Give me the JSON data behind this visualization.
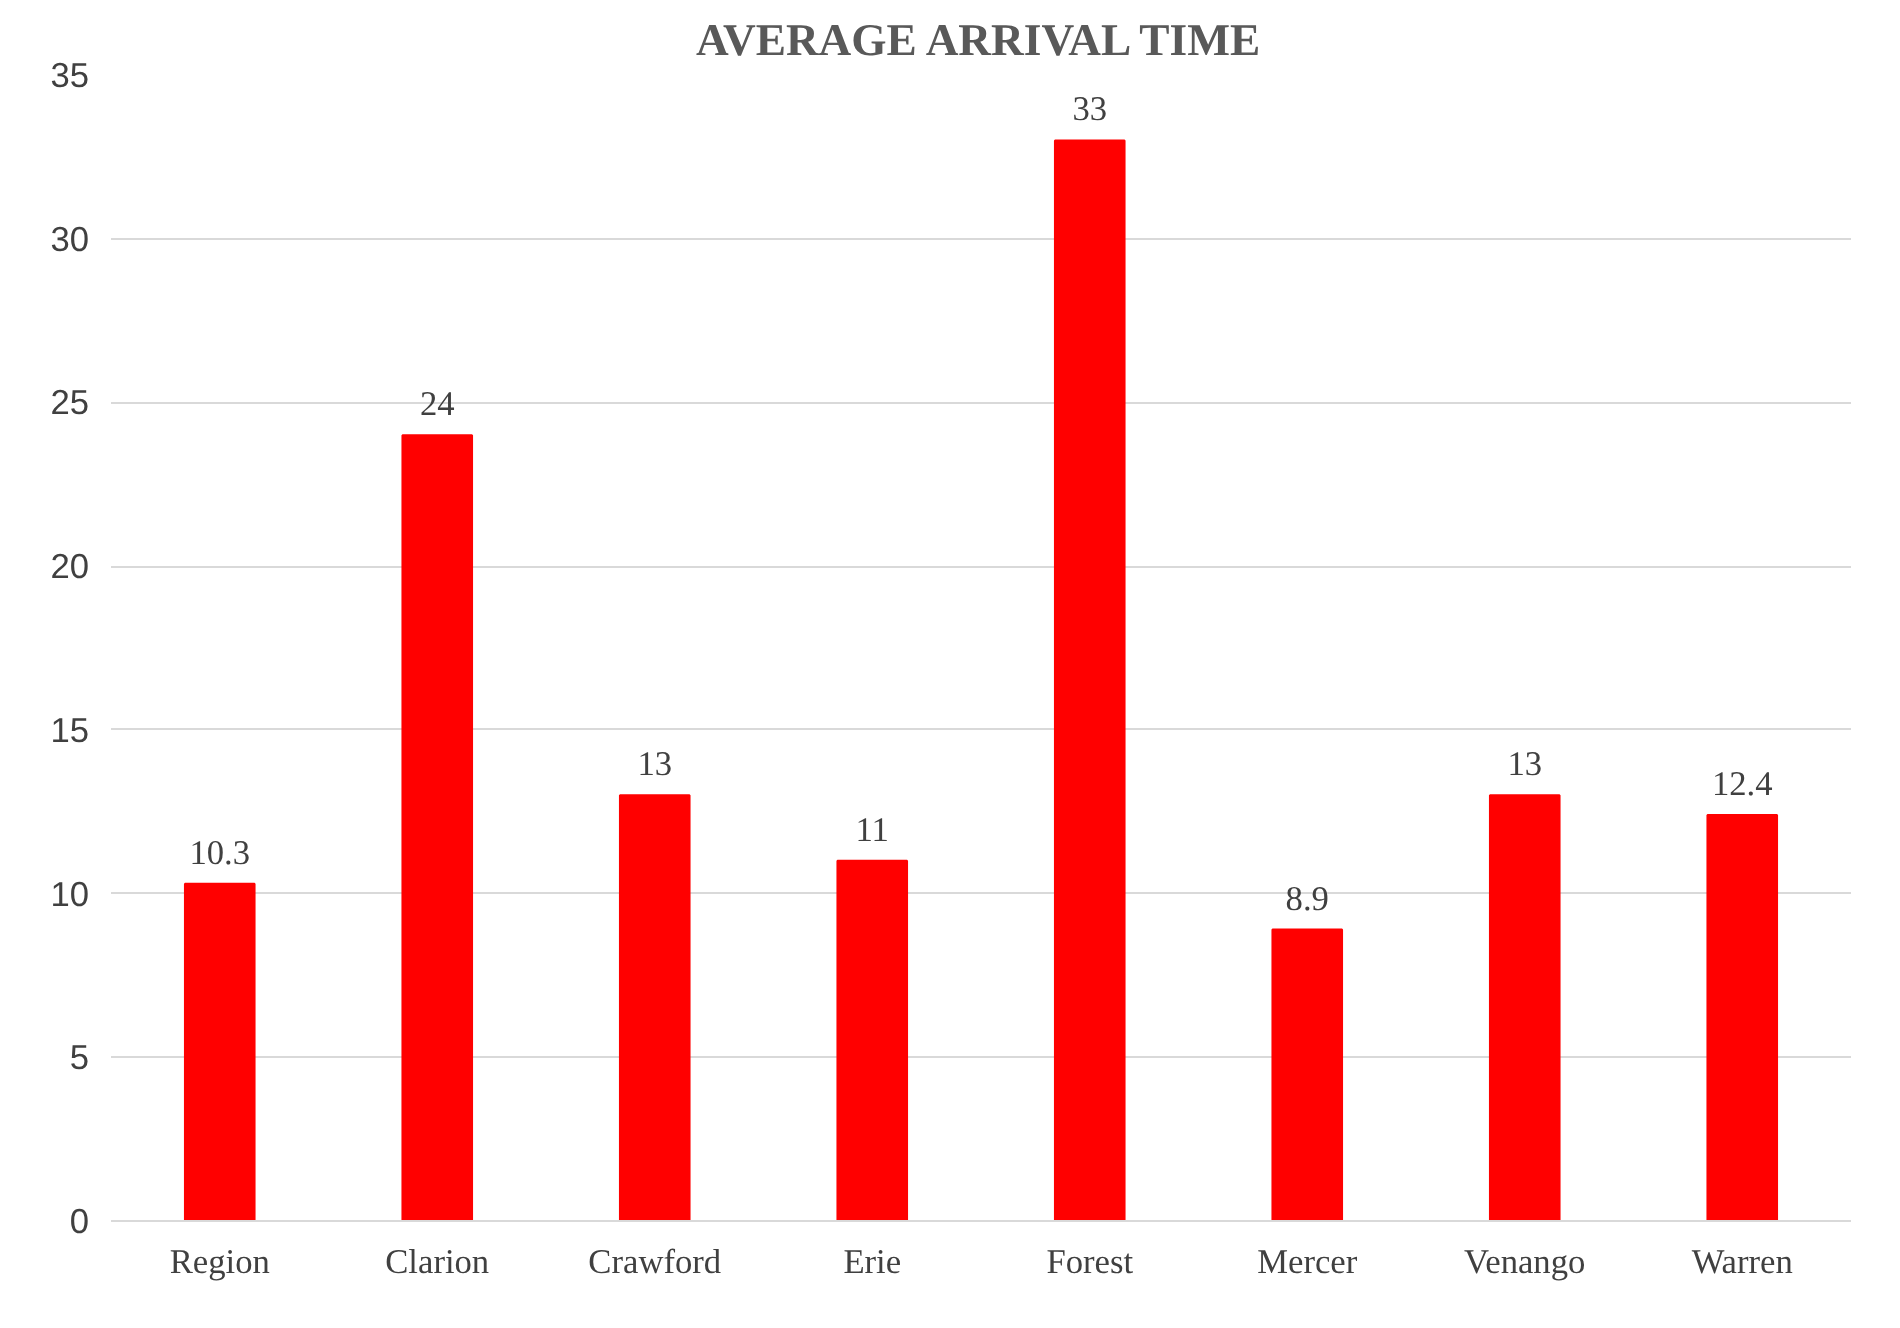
{
  "chart_data": {
    "type": "bar",
    "title": "AVERAGE ARRIVAL TIME",
    "categories": [
      "Region",
      "Clarion",
      "Crawford",
      "Erie",
      "Forest",
      "Mercer",
      "Venango",
      "Warren"
    ],
    "values": [
      10.3,
      24,
      13,
      11,
      33,
      8.9,
      13,
      12.4
    ],
    "color": "#ff0000",
    "ylim": [
      0,
      35
    ],
    "yticks": [
      0,
      5,
      10,
      15,
      20,
      25,
      30,
      35
    ],
    "grid": "y",
    "data_labels": true
  }
}
